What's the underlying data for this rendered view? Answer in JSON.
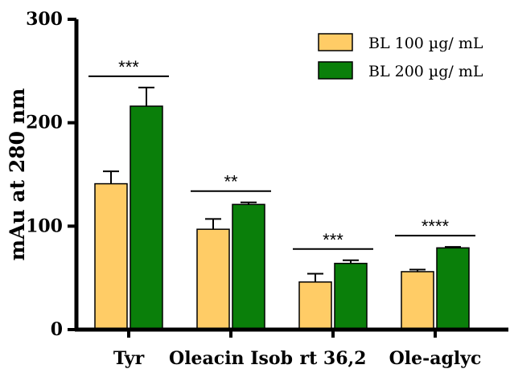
{
  "chart_data": {
    "type": "bar",
    "ylabel": "mAu at 280 nm",
    "ylim": [
      0,
      300
    ],
    "yticks": [
      "0",
      "100",
      "200",
      "300"
    ],
    "categories": [
      "Tyr",
      "Oleacin Isob",
      "rt 36,2",
      "Ole-aglyc"
    ],
    "series": [
      {
        "name": "BL 100 µg/ mL",
        "color": "#FFCC66",
        "values": [
          141,
          97,
          46,
          56
        ],
        "errors": [
          12,
          10,
          8,
          2
        ]
      },
      {
        "name": "BL 200 µg/ mL",
        "color": "#0A7F0A",
        "values": [
          216,
          121,
          64,
          79
        ],
        "errors": [
          18,
          2,
          3,
          1
        ]
      }
    ],
    "significance": [
      "***",
      "**",
      "***",
      "****"
    ],
    "legend_position": "top-right"
  }
}
